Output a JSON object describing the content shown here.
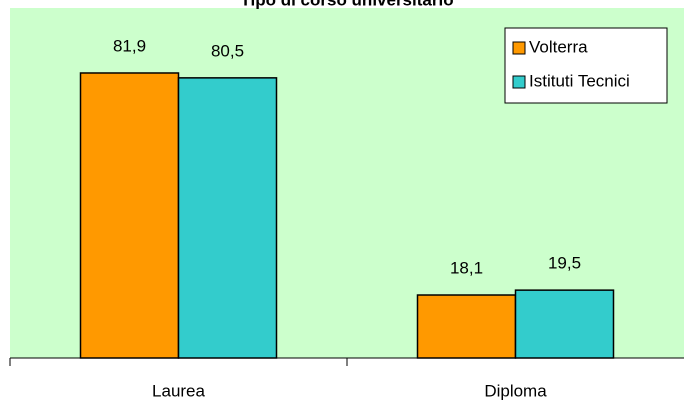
{
  "chart_data": {
    "type": "bar",
    "title": "Tipo di corso universitario",
    "categories": [
      "Laurea",
      "Diploma"
    ],
    "series": [
      {
        "name": "Volterra",
        "color": "#ff9900",
        "values": [
          81.9,
          18.1
        ],
        "value_labels": [
          "81,9",
          "18,1"
        ]
      },
      {
        "name": "Istituti Tecnici",
        "color": "#33cccc",
        "values": [
          80.5,
          19.5
        ],
        "value_labels": [
          "80,5",
          "19,5"
        ]
      }
    ],
    "ylim": [
      0,
      100
    ],
    "legend": "upper-right",
    "background": "#ccffcc"
  }
}
